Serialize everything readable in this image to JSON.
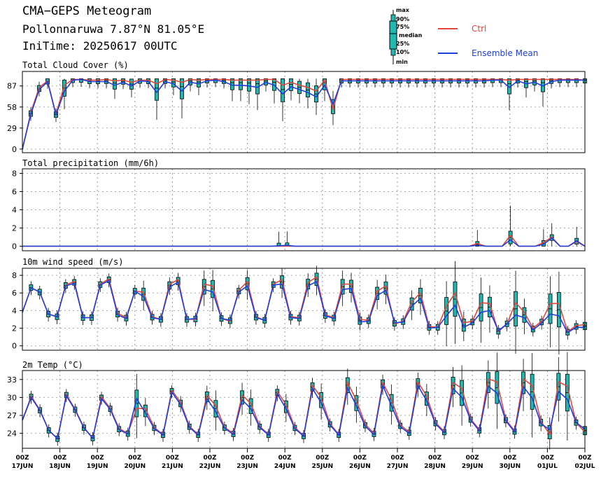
{
  "header": {
    "title": "CMA−GEPS Meteogram",
    "location": "Pollonnaruwa 7.87°N 81.05°E",
    "init": "IniTime: 20250617 00UTC"
  },
  "legend": {
    "box_labels": [
      "max",
      "90%",
      "75%",
      "median",
      "25%",
      "10%",
      "min"
    ],
    "ctrl": "Ctrl",
    "mean": "Ensemble Mean",
    "ctrl_color": "#e0473f",
    "mean_color": "#1f3ddc",
    "box_color": "#20b8b0"
  },
  "x_ticks": [
    {
      "top": "00Z",
      "bottom": "17JUN"
    },
    {
      "top": "00Z",
      "bottom": "18JUN"
    },
    {
      "top": "00Z",
      "bottom": "19JUN"
    },
    {
      "top": "00Z",
      "bottom": "20JUN"
    },
    {
      "top": "00Z",
      "bottom": "21JUN"
    },
    {
      "top": "00Z",
      "bottom": "22JUN"
    },
    {
      "top": "00Z",
      "bottom": "23JUN"
    },
    {
      "top": "00Z",
      "bottom": "24JUN"
    },
    {
      "top": "00Z",
      "bottom": "25JUN"
    },
    {
      "top": "00Z",
      "bottom": "26JUN"
    },
    {
      "top": "00Z",
      "bottom": "27JUN"
    },
    {
      "top": "00Z",
      "bottom": "28JUN"
    },
    {
      "top": "00Z",
      "bottom": "29JUN"
    },
    {
      "top": "00Z",
      "bottom": "30JUN"
    },
    {
      "top": "00Z",
      "bottom": "01JUL"
    },
    {
      "top": "00Z",
      "bottom": "02JUL"
    }
  ],
  "chart_data": [
    {
      "type": "line",
      "title": "Total Cloud Cover (%)",
      "yticks": [
        0,
        29,
        58,
        87
      ],
      "ylim": [
        -5,
        107
      ],
      "x_unit": "forecast hour",
      "x_step_hours": 6,
      "ctrl": [
        0,
        50,
        85,
        94,
        48,
        88,
        96,
        96,
        95,
        95,
        96,
        94,
        95,
        92,
        95,
        95,
        90,
        96,
        95,
        92,
        96,
        95,
        96,
        96,
        96,
        95,
        95,
        95,
        95,
        96,
        96,
        88,
        92,
        88,
        85,
        80,
        95,
        55,
        96,
        96,
        96,
        96,
        96,
        96,
        96,
        96,
        96,
        96,
        96,
        96,
        96,
        96,
        96,
        96,
        96,
        96,
        96,
        96,
        95,
        96,
        96,
        96,
        96,
        96,
        96,
        96,
        96,
        95
      ],
      "mean": [
        0,
        48,
        82,
        93,
        47,
        80,
        95,
        96,
        93,
        93,
        93,
        88,
        92,
        87,
        94,
        93,
        78,
        93,
        90,
        80,
        92,
        90,
        94,
        95,
        93,
        88,
        88,
        87,
        85,
        92,
        88,
        76,
        86,
        82,
        78,
        72,
        88,
        62,
        94,
        94,
        94,
        94,
        94,
        94,
        94,
        94,
        94,
        94,
        94,
        94,
        94,
        94,
        94,
        94,
        94,
        94,
        95,
        95,
        85,
        94,
        90,
        92,
        87,
        93,
        95,
        95,
        95,
        95
      ]
    },
    {
      "type": "line",
      "title": "Total precipitation (mm/6h)",
      "yticks": [
        0,
        2,
        4,
        6,
        8
      ],
      "ylim": [
        -0.5,
        8.5
      ],
      "ctrl": [
        0,
        0,
        0,
        0,
        0,
        0,
        0,
        0,
        0,
        0,
        0,
        0,
        0,
        0,
        0,
        0,
        0,
        0,
        0,
        0,
        0,
        0,
        0,
        0,
        0,
        0,
        0,
        0,
        0,
        0,
        0,
        0,
        0,
        0,
        0,
        0,
        0,
        0,
        0,
        0,
        0,
        0,
        0,
        0,
        0,
        0,
        0,
        0,
        0,
        0,
        0,
        0,
        0,
        0,
        0,
        0.3,
        0,
        0,
        0,
        1.2,
        0,
        0,
        0,
        0.4,
        1.0,
        0,
        0,
        0.5,
        0
      ],
      "mean": [
        0,
        0,
        0,
        0,
        0,
        0,
        0,
        0,
        0,
        0,
        0,
        0,
        0,
        0,
        0,
        0,
        0,
        0,
        0,
        0,
        0,
        0,
        0,
        0,
        0,
        0,
        0,
        0,
        0,
        0,
        0,
        0.05,
        0.1,
        0,
        0,
        0,
        0,
        0,
        0,
        0,
        0,
        0,
        0,
        0,
        0,
        0,
        0,
        0,
        0,
        0,
        0,
        0,
        0,
        0,
        0,
        0.1,
        0,
        0,
        0,
        0.7,
        0,
        0,
        0,
        0.2,
        0.9,
        0,
        0,
        0.6,
        0
      ]
    },
    {
      "type": "line",
      "title": "10m wind speed (m/s)",
      "yticks": [
        0,
        2,
        4,
        6,
        8
      ],
      "ylim": [
        -0.5,
        8.8
      ],
      "ctrl": [
        3.8,
        6.6,
        6.1,
        3.6,
        3.3,
        6.9,
        7.3,
        3.2,
        3.2,
        7.0,
        7.6,
        3.7,
        3.2,
        6.2,
        6.1,
        3.3,
        3.0,
        7.0,
        7.5,
        3.0,
        3.0,
        7.0,
        6.8,
        3.1,
        2.8,
        6.3,
        7.3,
        3.3,
        2.9,
        7.0,
        7.5,
        3.3,
        3.2,
        7.2,
        7.8,
        3.5,
        3.2,
        7.0,
        7.0,
        3.0,
        2.9,
        6.2,
        6.8,
        2.5,
        2.8,
        5.0,
        6.0,
        2.2,
        2.1,
        4.5,
        6.0,
        2.6,
        2.8,
        4.9,
        4.8,
        1.6,
        2.5,
        4.9,
        3.8,
        2.0,
        2.8,
        4.8,
        4.8,
        1.6,
        2.3,
        2.4
      ],
      "mean": [
        3.8,
        6.6,
        6.1,
        3.6,
        3.3,
        6.8,
        7.1,
        3.2,
        3.2,
        6.9,
        7.4,
        3.5,
        3.1,
        6.2,
        5.6,
        3.2,
        3.0,
        6.7,
        7.2,
        3.0,
        3.1,
        6.4,
        6.1,
        3.1,
        2.9,
        6.1,
        6.8,
        3.2,
        2.9,
        6.9,
        7.0,
        3.2,
        3.1,
        6.8,
        7.3,
        3.4,
        3.1,
        6.4,
        6.5,
        2.7,
        2.8,
        5.7,
        6.3,
        2.6,
        2.7,
        4.5,
        5.4,
        2.0,
        2.1,
        3.4,
        4.6,
        2.1,
        2.6,
        3.8,
        4.0,
        1.7,
        2.5,
        3.5,
        3.2,
        1.8,
        2.6,
        3.6,
        3.4,
        1.5,
        2.1,
        2.1
      ]
    },
    {
      "type": "line",
      "title": "2m Temp (°C)",
      "yticks": [
        24,
        27,
        30,
        33
      ],
      "ylim": [
        21.5,
        34.5
      ],
      "ctrl": [
        26.2,
        30.2,
        27.9,
        24.5,
        23.1,
        30.5,
        28.0,
        25.0,
        23.2,
        30.1,
        28.2,
        24.8,
        24.0,
        28.2,
        28.1,
        25.0,
        23.8,
        31.2,
        29.2,
        25.2,
        23.8,
        30.4,
        28.6,
        25.0,
        24.0,
        30.4,
        29.0,
        25.2,
        23.8,
        31.0,
        28.8,
        25.0,
        23.6,
        32.0,
        30.0,
        25.6,
        23.8,
        32.5,
        29.5,
        25.5,
        24.0,
        32.5,
        29.6,
        25.4,
        24.2,
        32.6,
        30.2,
        25.8,
        24.3,
        32.5,
        31.5,
        26.4,
        24.6,
        33.1,
        32.6,
        26.3,
        24.4,
        33.1,
        32.0,
        26.0,
        23.8,
        32.6,
        31.9,
        25.8,
        24.2
      ],
      "mean": [
        26.2,
        30.0,
        27.8,
        24.5,
        23.1,
        30.3,
        27.9,
        24.9,
        23.2,
        29.8,
        28.0,
        24.6,
        23.9,
        29.8,
        27.4,
        24.8,
        23.7,
        30.9,
        28.8,
        25.0,
        23.7,
        29.8,
        27.6,
        24.9,
        23.8,
        29.6,
        28.1,
        25.0,
        23.7,
        30.6,
        28.1,
        24.8,
        23.5,
        31.5,
        29.1,
        25.4,
        23.7,
        31.6,
        28.6,
        25.2,
        23.8,
        32.0,
        28.6,
        25.1,
        24.0,
        32.0,
        29.4,
        25.6,
        24.1,
        31.5,
        30.0,
        26.2,
        24.4,
        31.9,
        30.7,
        26.1,
        24.2,
        31.8,
        29.9,
        25.6,
        24.6,
        31.0,
        29.7,
        25.8,
        24.7
      ]
    }
  ]
}
